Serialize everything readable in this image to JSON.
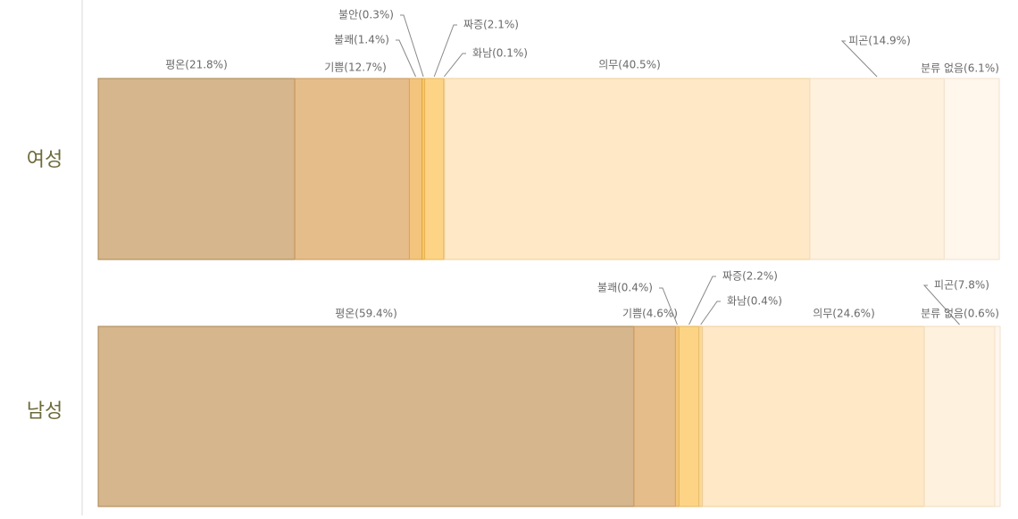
{
  "chart_data": {
    "type": "stacked-bar-100",
    "orientation": "horizontal",
    "categories": [
      "여성",
      "남성"
    ],
    "xlim": [
      0,
      100
    ],
    "series": [
      {
        "color": "#d6b68c",
        "values": [
          21.8,
          59.4
        ],
        "value_labels": [
          "평온(21.8%)",
          "평온(59.4%)"
        ]
      },
      {
        "color": "#e5bd8a",
        "values": [
          12.7,
          4.6
        ],
        "value_labels": [
          "기쁨(12.7%)",
          "기쁨(4.6%)"
        ]
      },
      {
        "color": "#f3c57c",
        "values": [
          1.4,
          0.4
        ],
        "value_labels": [
          "불쾌(1.4%)",
          "불쾌(0.4%)"
        ]
      },
      {
        "color": "#f7c86a",
        "values": [
          0.3,
          null
        ],
        "value_labels": [
          "불안(0.3%)",
          null
        ]
      },
      {
        "color": "#fdd486",
        "values": [
          2.1,
          2.2
        ],
        "value_labels": [
          "짜증(2.1%)",
          "짜증(2.2%)"
        ]
      },
      {
        "color": "#fcd999",
        "values": [
          0.1,
          0.4
        ],
        "value_labels": [
          "화남(0.1%)",
          "화남(0.4%)"
        ]
      },
      {
        "color": "#fee8c6",
        "values": [
          40.5,
          24.6
        ],
        "value_labels": [
          "의무(40.5%)",
          "의무(24.6%)"
        ]
      },
      {
        "color": "#fef1de",
        "values": [
          14.9,
          7.8
        ],
        "value_labels": [
          "피곤(14.9%)",
          "피곤(7.8%)"
        ]
      },
      {
        "color": "#fff6ec",
        "values": [
          6.1,
          0.6
        ],
        "value_labels": [
          "분류 없음(6.1%)",
          "분류 없음(0.6%)"
        ]
      }
    ]
  }
}
